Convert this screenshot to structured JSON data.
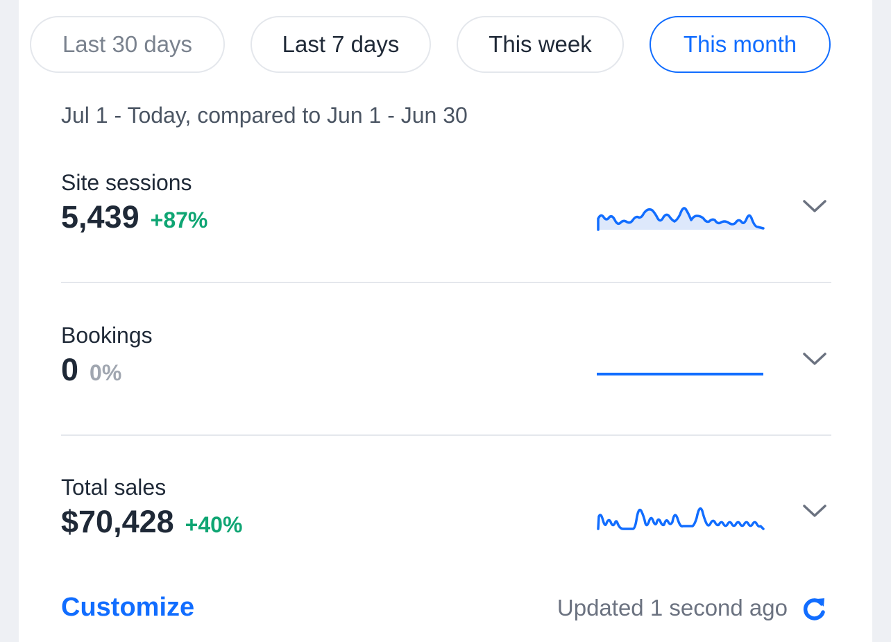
{
  "filters": [
    {
      "label": "Last 30 days",
      "state": "muted"
    },
    {
      "label": "Last 7 days",
      "state": "default"
    },
    {
      "label": "This week",
      "state": "default"
    },
    {
      "label": "This month",
      "state": "active"
    }
  ],
  "range_text": "Jul 1 - Today, compared to Jun 1 - Jun 30",
  "metrics": [
    {
      "label": "Site sessions",
      "value": "5,439",
      "change": "+87%",
      "change_color": "#0fa573",
      "spark_icon": "sparkline-chart-icon"
    },
    {
      "label": "Bookings",
      "value": "0",
      "change": "0%",
      "change_color": "#a0a6b0",
      "spark_icon": "flat-line-chart-icon"
    },
    {
      "label": "Total sales",
      "value": "$70,428",
      "change": "+40%",
      "change_color": "#0fa573",
      "spark_icon": "sparkline-chart-icon"
    }
  ],
  "footer": {
    "customize_label": "Customize",
    "updated_text": "Updated 1 second ago",
    "refresh_icon": "refresh-icon"
  },
  "colors": {
    "accent": "#116dff",
    "positive": "#0fa573",
    "neutral": "#a0a6b0",
    "text": "#1f2937"
  }
}
